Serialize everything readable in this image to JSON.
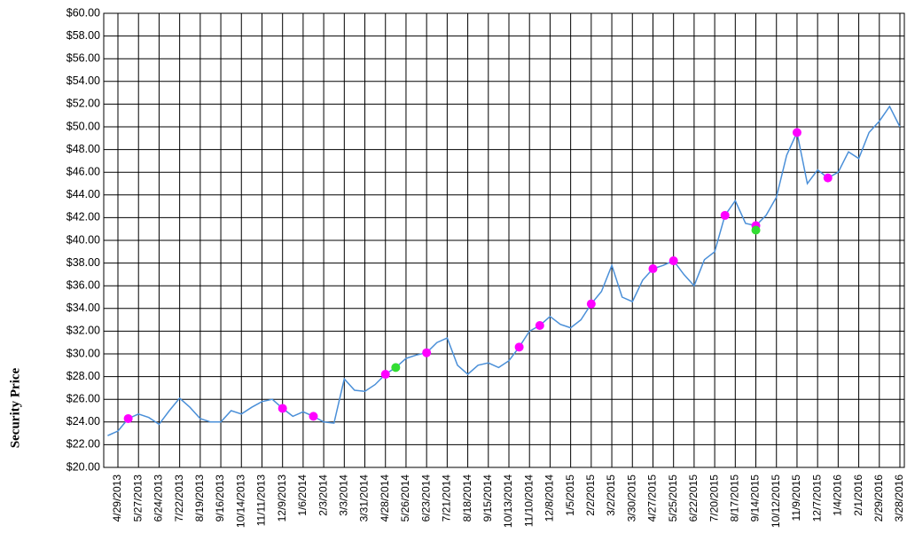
{
  "chart_data": {
    "type": "line",
    "y_label": "Security Price",
    "categories": [
      null,
      "4/29/2013",
      null,
      "5/27/2013",
      null,
      "6/24/2013",
      null,
      "7/22/2013",
      null,
      "8/19/2013",
      null,
      "9/16/2013",
      null,
      "10/14/2013",
      null,
      "11/11/2013",
      null,
      "12/9/2013",
      null,
      "1/6/2014",
      null,
      "2/3/2014",
      null,
      "3/3/2014",
      null,
      "3/31/2014",
      null,
      "4/28/2014",
      null,
      "5/26/2014",
      null,
      "6/23/2014",
      null,
      "7/21/2014",
      null,
      "8/18/2014",
      null,
      "9/15/2014",
      null,
      "10/13/2014",
      null,
      "11/10/2014",
      null,
      "12/8/2014",
      null,
      "1/5/2015",
      null,
      "2/2/2015",
      null,
      "3/2/2015",
      null,
      "3/30/2015",
      null,
      "4/27/2015",
      null,
      "5/25/2015",
      null,
      "6/22/2015",
      null,
      "7/20/2015",
      null,
      "8/17/2015",
      null,
      "9/14/2015",
      null,
      "10/12/2015",
      null,
      "11/9/2015",
      null,
      "12/7/2015",
      null,
      "1/4/2016",
      null,
      "2/1/2016",
      null,
      "2/29/2016",
      null,
      "3/28/2016"
    ],
    "series": [
      {
        "color": "#4a8fd8",
        "values": [
          22.8,
          23.2,
          24.3,
          24.7,
          24.4,
          23.8,
          25.0,
          26.1,
          25.3,
          24.3,
          24.0,
          24.0,
          25.0,
          24.7,
          25.3,
          25.8,
          26.0,
          25.2,
          24.5,
          24.9,
          24.5,
          24.0,
          23.9,
          27.8,
          26.8,
          26.7,
          27.3,
          28.2,
          28.8,
          29.6,
          29.9,
          30.1,
          31.0,
          31.4,
          29.0,
          28.2,
          29.0,
          29.2,
          28.8,
          29.4,
          30.6,
          32.0,
          32.5,
          33.3,
          32.6,
          32.3,
          33.0,
          34.4,
          35.5,
          37.8,
          35.0,
          34.6,
          36.5,
          37.5,
          37.8,
          38.2,
          37.0,
          36.0,
          38.3,
          39.0,
          42.2,
          43.5,
          41.5,
          41.3,
          42.2,
          43.8,
          47.5,
          49.5,
          45.0,
          46.2,
          45.5,
          46.0,
          47.8,
          47.2,
          49.5,
          50.5,
          51.8,
          50.0
        ]
      },
      {
        "color": "#ff00ff",
        "marker": true,
        "values": [
          null,
          null,
          24.3,
          null,
          null,
          null,
          null,
          null,
          null,
          null,
          null,
          null,
          null,
          null,
          null,
          null,
          null,
          25.2,
          null,
          null,
          24.5,
          null,
          null,
          null,
          null,
          null,
          null,
          28.2,
          null,
          null,
          null,
          30.1,
          null,
          null,
          null,
          null,
          null,
          null,
          null,
          null,
          30.6,
          null,
          32.5,
          null,
          null,
          null,
          null,
          34.4,
          null,
          null,
          null,
          null,
          null,
          37.5,
          null,
          38.2,
          null,
          null,
          null,
          null,
          42.2,
          null,
          null,
          41.3,
          null,
          null,
          null,
          49.5,
          null,
          null,
          45.5,
          null,
          null,
          null,
          null,
          null,
          null,
          null
        ]
      },
      {
        "color": "#33dd33",
        "marker": true,
        "values": [
          null,
          null,
          null,
          null,
          null,
          null,
          null,
          null,
          null,
          null,
          null,
          null,
          null,
          null,
          null,
          null,
          null,
          null,
          null,
          null,
          null,
          null,
          null,
          null,
          null,
          null,
          null,
          null,
          28.8,
          null,
          null,
          null,
          null,
          null,
          null,
          null,
          null,
          null,
          null,
          null,
          null,
          null,
          null,
          null,
          null,
          null,
          null,
          null,
          null,
          null,
          null,
          null,
          null,
          null,
          null,
          null,
          null,
          null,
          null,
          null,
          null,
          null,
          null,
          40.9,
          null,
          null,
          null,
          null,
          null,
          null,
          null,
          null,
          null,
          null,
          null,
          null,
          null,
          null
        ]
      }
    ],
    "ylim": [
      20,
      60
    ],
    "yticks": [
      {
        "value": 20,
        "label": "$20.00"
      },
      {
        "value": 22,
        "label": "$22.00"
      },
      {
        "value": 24,
        "label": "$24.00"
      },
      {
        "value": 26,
        "label": "$26.00"
      },
      {
        "value": 28,
        "label": "$28.00"
      },
      {
        "value": 30,
        "label": "$30.00"
      },
      {
        "value": 32,
        "label": "$32.00"
      },
      {
        "value": 34,
        "label": "$34.00"
      },
      {
        "value": 36,
        "label": "$36.00"
      },
      {
        "value": 38,
        "label": "$38.00"
      },
      {
        "value": 40,
        "label": "$40.00"
      },
      {
        "value": 42,
        "label": "$42.00"
      },
      {
        "value": 44,
        "label": "$44.00"
      },
      {
        "value": 46,
        "label": "$46.00"
      },
      {
        "value": 48,
        "label": "$48.00"
      },
      {
        "value": 50,
        "label": "$50.00"
      },
      {
        "value": 52,
        "label": "$52.00"
      },
      {
        "value": 54,
        "label": "$54.00"
      },
      {
        "value": 56,
        "label": "$56.00"
      },
      {
        "value": 58,
        "label": "$58.00"
      },
      {
        "value": 60,
        "label": "$60.00"
      }
    ],
    "grid": true
  }
}
